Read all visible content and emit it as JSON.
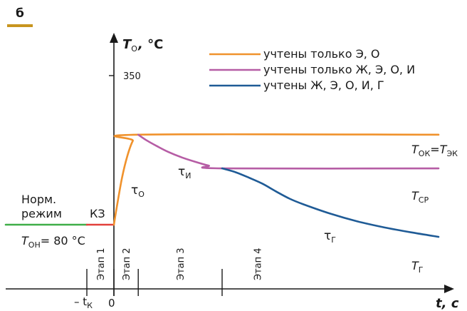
{
  "panel_letter": "б",
  "colors": {
    "orange": "#f0922c",
    "purple": "#b65da5",
    "blue": "#1f5b96",
    "green": "#3fae48",
    "red": "#e2403a",
    "panel_bar": "#c8951f",
    "axis": "#1a1a1a"
  },
  "chart_data": {
    "type": "line",
    "x_axis": {
      "label": "t",
      "unit": "с"
    },
    "y_axis": {
      "label_main": "T",
      "label_sub": "О",
      "unit": "°С"
    },
    "y_ticks": [
      {
        "value": 350,
        "label": "350"
      }
    ],
    "x_ticks": [
      {
        "label_pre": "– t",
        "label_sub": "К",
        "t": -1.0
      },
      {
        "label_pre": "0",
        "label_sub": "",
        "t": 0.0
      }
    ],
    "stage_boundaries": [
      -1.0,
      0.0,
      0.9,
      4.0
    ],
    "stages": [
      {
        "label": "Этап 1",
        "t": -0.5
      },
      {
        "label": "Этап 2",
        "t": 0.45
      },
      {
        "label": "Этап 3",
        "t": 2.45
      },
      {
        "label": "Этап 4",
        "t": 5.3
      }
    ],
    "x_range": [
      -4.0,
      12.5
    ],
    "y_range": [
      0,
      400
    ],
    "series": [
      {
        "key": "normal",
        "color_key": "green",
        "points": [
          [
            -4.0,
            80
          ],
          [
            -1.0,
            80
          ]
        ]
      },
      {
        "key": "short",
        "color_key": "red",
        "points": [
          [
            -1.0,
            80
          ],
          [
            0.0,
            80
          ]
        ]
      },
      {
        "name": "учтены только Э, О",
        "color_key": "orange",
        "points": [
          [
            0.0,
            80
          ],
          [
            0.1,
            110
          ],
          [
            0.3,
            165
          ],
          [
            0.5,
            205
          ],
          [
            0.7,
            232
          ],
          [
            0.9,
            243
          ],
          [
            12.0,
            243
          ]
        ]
      },
      {
        "name": "учтены только Ж, Э, О, И",
        "color_key": "purple",
        "points": [
          [
            0.9,
            243
          ],
          [
            1.2,
            233
          ],
          [
            1.6,
            222
          ],
          [
            2.0,
            212
          ],
          [
            2.5,
            202
          ],
          [
            3.0,
            194
          ],
          [
            3.5,
            187
          ],
          [
            4.0,
            182
          ],
          [
            12.0,
            182
          ]
        ]
      },
      {
        "name": "учтены Ж, Э, О, И, Г",
        "color_key": "blue",
        "points": [
          [
            4.0,
            182
          ],
          [
            4.5,
            175
          ],
          [
            5.0,
            165
          ],
          [
            5.5,
            154
          ],
          [
            6.0,
            140
          ],
          [
            6.5,
            127
          ],
          [
            7.0,
            117
          ],
          [
            8.0,
            100
          ],
          [
            9.0,
            86
          ],
          [
            10.0,
            75
          ],
          [
            11.0,
            66
          ],
          [
            12.0,
            58
          ]
        ]
      }
    ],
    "annotations": {
      "norm_line1": "Норм.",
      "norm_line2": "режим",
      "kz": "КЗ",
      "ton_main": "T",
      "ton_sub": "ОН",
      "ton_value": "= 80 °С",
      "tau_o_main": "τ",
      "tau_o_sub": "О",
      "tau_i_main": "τ",
      "tau_i_sub": "И",
      "tau_g_main": "τ",
      "tau_g_sub": "Г",
      "tok_main": "T",
      "tok_sub": "ОК",
      "tok_eq": "=",
      "tek_main": "T",
      "tek_sub": "ЭК",
      "tcp_main": "T",
      "tcp_sub": "СР",
      "tg_main": "T",
      "tg_sub": "Г"
    }
  }
}
